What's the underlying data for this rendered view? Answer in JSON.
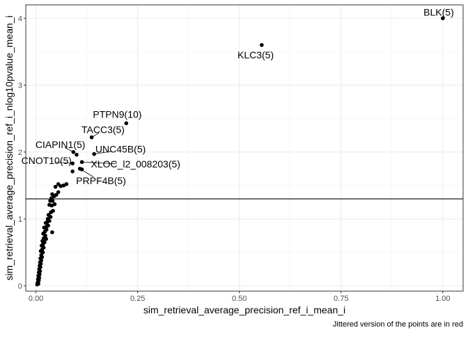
{
  "chart_data": {
    "type": "scatter",
    "xlabel": "sim_retrieval_average_precision_ref_i_mean_i",
    "ylabel": "sim_retrieval_average_precision_ref_i_nlog10pvalue_mean_i",
    "caption": "Jittered version of the points are in red",
    "xlim": [
      -0.025,
      1.05
    ],
    "ylim": [
      -0.08,
      4.2
    ],
    "x_ticks": [
      0.0,
      0.25,
      0.5,
      0.75,
      1.0
    ],
    "x_tick_labels": [
      "0.00",
      "0.25",
      "0.50",
      "0.75",
      "1.00"
    ],
    "y_ticks": [
      0,
      1,
      2,
      3,
      4
    ],
    "y_tick_labels": [
      "0",
      "1",
      "2",
      "3",
      "4"
    ],
    "grid": true,
    "hline": 1.3,
    "point_color": "#000000",
    "points": [
      {
        "x": 1.0,
        "y": 4.0
      },
      {
        "x": 0.555,
        "y": 3.6
      },
      {
        "x": 0.222,
        "y": 2.43
      },
      {
        "x": 0.137,
        "y": 2.22
      },
      {
        "x": 0.092,
        "y": 2.0
      },
      {
        "x": 0.143,
        "y": 1.97
      },
      {
        "x": 0.1,
        "y": 1.96
      },
      {
        "x": 0.09,
        "y": 1.83
      },
      {
        "x": 0.113,
        "y": 1.85
      },
      {
        "x": 0.113,
        "y": 1.74
      },
      {
        "x": 0.108,
        "y": 1.75
      },
      {
        "x": 0.09,
        "y": 1.71
      },
      {
        "x": 0.075,
        "y": 1.52
      },
      {
        "x": 0.068,
        "y": 1.5
      },
      {
        "x": 0.055,
        "y": 1.52
      },
      {
        "x": 0.061,
        "y": 1.49
      },
      {
        "x": 0.048,
        "y": 1.48
      },
      {
        "x": 0.055,
        "y": 1.4
      },
      {
        "x": 0.05,
        "y": 1.36
      },
      {
        "x": 0.045,
        "y": 1.34
      },
      {
        "x": 0.04,
        "y": 1.37
      },
      {
        "x": 0.038,
        "y": 1.31
      },
      {
        "x": 0.035,
        "y": 1.27
      },
      {
        "x": 0.041,
        "y": 1.27
      },
      {
        "x": 0.046,
        "y": 1.22
      },
      {
        "x": 0.039,
        "y": 1.2
      },
      {
        "x": 0.033,
        "y": 1.21
      },
      {
        "x": 0.042,
        "y": 1.12
      },
      {
        "x": 0.037,
        "y": 1.1
      },
      {
        "x": 0.031,
        "y": 1.06
      },
      {
        "x": 0.036,
        "y": 1.03
      },
      {
        "x": 0.029,
        "y": 1.0
      },
      {
        "x": 0.033,
        "y": 0.97
      },
      {
        "x": 0.027,
        "y": 0.95
      },
      {
        "x": 0.024,
        "y": 0.94
      },
      {
        "x": 0.03,
        "y": 0.9
      },
      {
        "x": 0.025,
        "y": 0.88
      },
      {
        "x": 0.02,
        "y": 0.87
      },
      {
        "x": 0.026,
        "y": 0.84
      },
      {
        "x": 0.022,
        "y": 0.81
      },
      {
        "x": 0.04,
        "y": 0.8
      },
      {
        "x": 0.018,
        "y": 0.78
      },
      {
        "x": 0.023,
        "y": 0.75
      },
      {
        "x": 0.019,
        "y": 0.71
      },
      {
        "x": 0.025,
        "y": 0.7
      },
      {
        "x": 0.016,
        "y": 0.67
      },
      {
        "x": 0.021,
        "y": 0.65
      },
      {
        "x": 0.017,
        "y": 0.62
      },
      {
        "x": 0.014,
        "y": 0.6
      },
      {
        "x": 0.019,
        "y": 0.57
      },
      {
        "x": 0.015,
        "y": 0.54
      },
      {
        "x": 0.012,
        "y": 0.52
      },
      {
        "x": 0.017,
        "y": 0.5
      },
      {
        "x": 0.013,
        "y": 0.46
      },
      {
        "x": 0.015,
        "y": 0.43
      },
      {
        "x": 0.011,
        "y": 0.41
      },
      {
        "x": 0.013,
        "y": 0.38
      },
      {
        "x": 0.01,
        "y": 0.35
      },
      {
        "x": 0.012,
        "y": 0.33
      },
      {
        "x": 0.009,
        "y": 0.3
      },
      {
        "x": 0.011,
        "y": 0.28
      },
      {
        "x": 0.008,
        "y": 0.25
      },
      {
        "x": 0.01,
        "y": 0.22
      },
      {
        "x": 0.007,
        "y": 0.2
      },
      {
        "x": 0.009,
        "y": 0.17
      },
      {
        "x": 0.006,
        "y": 0.15
      },
      {
        "x": 0.008,
        "y": 0.12
      },
      {
        "x": 0.005,
        "y": 0.1
      },
      {
        "x": 0.007,
        "y": 0.08
      },
      {
        "x": 0.005,
        "y": 0.06
      },
      {
        "x": 0.004,
        "y": 0.04
      },
      {
        "x": 0.006,
        "y": 0.03
      },
      {
        "x": 0.003,
        "y": 0.02
      }
    ],
    "labels": [
      {
        "text": "BLK(5)",
        "x": 1.0,
        "y": 4.0,
        "label_x": 0.99,
        "label_y": 4.08
      },
      {
        "text": "KLC3(5)",
        "x": 0.555,
        "y": 3.6,
        "label_x": 0.54,
        "label_y": 3.44
      },
      {
        "text": "PTPN9(10)",
        "x": 0.222,
        "y": 2.43,
        "label_x": 0.2,
        "label_y": 2.55
      },
      {
        "text": "TACC3(5)",
        "x": 0.137,
        "y": 2.22,
        "label_x": 0.165,
        "label_y": 2.32
      },
      {
        "text": "CIAPIN1(5)",
        "x": 0.092,
        "y": 2.0,
        "label_x": 0.06,
        "label_y": 2.1
      },
      {
        "text": "UNC45B(5)",
        "x": 0.143,
        "y": 1.97,
        "label_x": 0.208,
        "label_y": 2.03
      },
      {
        "text": "CNOT10(5)",
        "x": 0.09,
        "y": 1.83,
        "label_x": 0.026,
        "label_y": 1.86
      },
      {
        "text": "XLOC_l2_008203(5)",
        "x": 0.113,
        "y": 1.85,
        "label_x": 0.245,
        "label_y": 1.81
      },
      {
        "text": "PRPF4B(5)",
        "x": 0.108,
        "y": 1.75,
        "label_x": 0.16,
        "label_y": 1.56
      }
    ]
  }
}
